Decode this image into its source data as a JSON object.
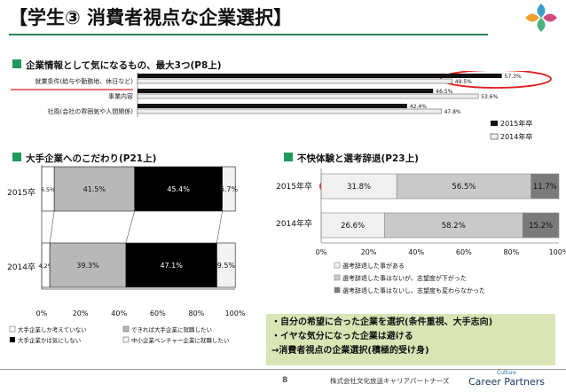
{
  "header": {
    "title": "【学生③ 消費者視点な企業選択】"
  },
  "sections": {
    "s1": "企業情報として気になるもの、最大3つ(P8上)",
    "s2": "大手企業へのこだわり(P21上)",
    "s3": "不快体験と選考辞退(P23上)"
  },
  "colors": {
    "accent": "#1f9a5c",
    "highlight": "#e02020",
    "summary_bg": "#d9e5b5"
  },
  "chart_data": [
    {
      "type": "bar",
      "orientation": "horizontal",
      "categories": [
        "就業条件(給与や勤務地、休日など)",
        "事業内容",
        "社風(会社の雰囲気や人間関係)"
      ],
      "series": [
        {
          "name": "2015年卒",
          "values": [
            57.3,
            46.5,
            42.4
          ],
          "labels": [
            "57.3%",
            "46.5%",
            "42.4%"
          ]
        },
        {
          "name": "2014年卒",
          "values": [
            49.5,
            53.6,
            47.8
          ],
          "labels": [
            "49.5%",
            "53.6%",
            "47.8%"
          ]
        }
      ],
      "xlim": [
        0,
        60
      ],
      "legend": [
        "2015年卒",
        "2014年卒"
      ]
    },
    {
      "type": "bar",
      "orientation": "horizontal",
      "stacked": true,
      "categories": [
        "2015卒",
        "2014卒"
      ],
      "series": [
        {
          "name": "大手企業しか考えていない",
          "values": [
            6.5,
            4.2
          ],
          "labels": [
            "6.5%",
            "4.2%"
          ]
        },
        {
          "name": "できれば大手企業に就職したい",
          "values": [
            41.5,
            39.3
          ],
          "labels": [
            "41.5%",
            "39.3%"
          ]
        },
        {
          "name": "大手企業かは気にしない",
          "values": [
            45.4,
            47.1
          ],
          "labels": [
            "45.4%",
            "47.1%"
          ]
        },
        {
          "name": "中小企業ベンチャー企業に就職したい",
          "values": [
            6.7,
            9.5
          ],
          "labels": [
            "6.7%",
            "9.5%"
          ]
        }
      ],
      "ticks": [
        "0%",
        "20%",
        "40%",
        "60%",
        "80%",
        "100%"
      ],
      "xlim": [
        0,
        100
      ]
    },
    {
      "type": "bar",
      "orientation": "horizontal",
      "stacked": true,
      "categories": [
        "2015年卒",
        "2014年卒"
      ],
      "series": [
        {
          "name": "選考辞退した事がある",
          "values": [
            31.8,
            26.6
          ],
          "labels": [
            "31.8%",
            "26.6%"
          ]
        },
        {
          "name": "選考辞退した事はないが、志望度が下がった",
          "values": [
            56.5,
            58.2
          ],
          "labels": [
            "56.5%",
            "58.2%"
          ]
        },
        {
          "name": "選考辞退した事はないし、志望度も変わらなかった",
          "values": [
            11.7,
            15.2
          ],
          "labels": [
            "11.7%",
            "15.2%"
          ]
        }
      ],
      "ticks": [
        "0%",
        "20%",
        "40%",
        "60%",
        "80%",
        "100%"
      ],
      "xlim": [
        0,
        100
      ]
    }
  ],
  "summary": {
    "line1": "・自分の希望に合った企業を選択(条件重視、大手志向)",
    "line2": "・イヤな気分になった企業は避ける",
    "line3": "→消費者視点の企業選択(積極的受け身)"
  },
  "footer": {
    "page": "8",
    "company": "株式会社文化放送キャリアパートナーズ",
    "logo_small": "Culture",
    "logo_text": "Career Partners"
  }
}
